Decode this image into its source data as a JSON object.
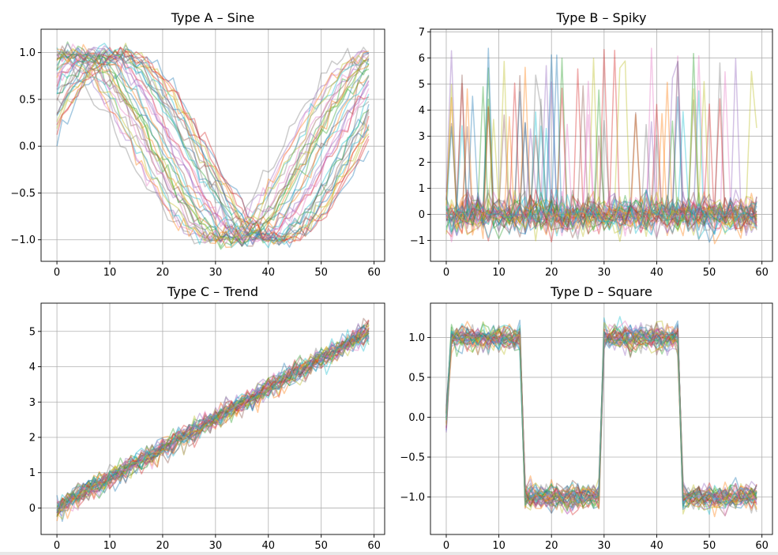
{
  "palette": [
    "#1f77b4",
    "#ff7f0e",
    "#2ca02c",
    "#d62728",
    "#9467bd",
    "#8c564b",
    "#e377c2",
    "#7f7f7f",
    "#bcbd22",
    "#17becf"
  ],
  "chart_data": [
    {
      "type": "line",
      "title": "Type A – Sine",
      "pattern": "sine",
      "n_series": 40,
      "x": {
        "min": 0,
        "max": 59,
        "step": 1
      },
      "xlim": [
        -3,
        62
      ],
      "ylim": [
        -1.23,
        1.25
      ],
      "xticks": [
        0,
        10,
        20,
        30,
        40,
        50,
        60
      ],
      "yticks": [
        -1.0,
        -0.5,
        0.0,
        0.5,
        1.0
      ],
      "xtick_labels": [
        "0",
        "10",
        "20",
        "30",
        "40",
        "50",
        "60"
      ],
      "ytick_labels": [
        "−1.0",
        "−0.5",
        "0.0",
        "0.5",
        "1.0"
      ],
      "amplitude": 1.0,
      "period": 60,
      "phase_range": [
        0.1,
        2.0
      ],
      "noise": 0.05,
      "grid": true
    },
    {
      "type": "line",
      "title": "Type B – Spiky",
      "pattern": "spiky",
      "n_series": 40,
      "x": {
        "min": 0,
        "max": 59,
        "step": 1
      },
      "xlim": [
        -3,
        62
      ],
      "ylim": [
        -1.8,
        7.1
      ],
      "xticks": [
        0,
        10,
        20,
        30,
        40,
        50,
        60
      ],
      "yticks": [
        -1,
        0,
        1,
        2,
        3,
        4,
        5,
        6,
        7
      ],
      "xtick_labels": [
        "0",
        "10",
        "20",
        "30",
        "40",
        "50",
        "60"
      ],
      "ytick_labels": [
        "−1",
        "0",
        "1",
        "2",
        "3",
        "4",
        "5",
        "6",
        "7"
      ],
      "baseline": 0.0,
      "noise": 0.35,
      "spike_height_range": [
        3.0,
        6.5
      ],
      "grid": true
    },
    {
      "type": "line",
      "title": "Type C – Trend",
      "pattern": "trend",
      "n_series": 40,
      "x": {
        "min": 0,
        "max": 59,
        "step": 1
      },
      "xlim": [
        -3,
        62
      ],
      "ylim": [
        -0.75,
        5.8
      ],
      "xticks": [
        0,
        10,
        20,
        30,
        40,
        50,
        60
      ],
      "yticks": [
        0,
        1,
        2,
        3,
        4,
        5
      ],
      "xtick_labels": [
        "0",
        "10",
        "20",
        "30",
        "40",
        "50",
        "60"
      ],
      "ytick_labels": [
        "0",
        "1",
        "2",
        "3",
        "4",
        "5"
      ],
      "start": 0.0,
      "end": 5.0,
      "noise": 0.15,
      "grid": true
    },
    {
      "type": "line",
      "title": "Type D – Square",
      "pattern": "square",
      "n_series": 40,
      "x": {
        "min": 0,
        "max": 59,
        "step": 1
      },
      "xlim": [
        -3,
        62
      ],
      "ylim": [
        -1.47,
        1.43
      ],
      "xticks": [
        0,
        10,
        20,
        30,
        40,
        50,
        60
      ],
      "yticks": [
        -1.0,
        -0.5,
        0.0,
        0.5,
        1.0
      ],
      "xtick_labels": [
        "0",
        "10",
        "20",
        "30",
        "40",
        "50",
        "60"
      ],
      "ytick_labels": [
        "−1.0",
        "−0.5",
        "0.0",
        "0.5",
        "1.0"
      ],
      "high": 1.0,
      "low": -1.0,
      "half_period": 15,
      "first_point": 0.0,
      "noise": 0.08,
      "grid": true
    }
  ]
}
